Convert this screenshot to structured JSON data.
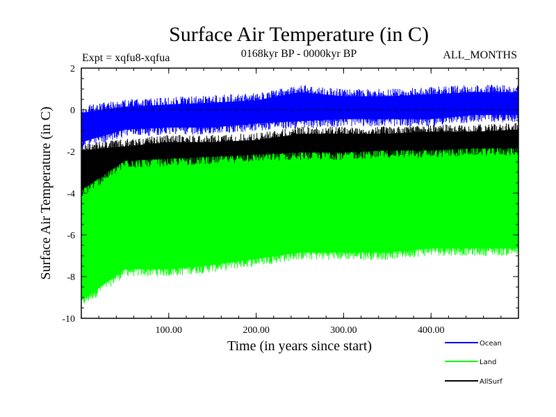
{
  "chart_data": {
    "type": "line",
    "title": "Surface Air Temperature (in C)",
    "subtitle": "0168kyr BP - 0000kyr BP",
    "expt_label": "Expt = xqfu8-xqfua",
    "months_label": "ALL_MONTHS",
    "xlabel": "Time (in years since start)",
    "ylabel": "Surface Air Temperature (in C)",
    "xlim": [
      0,
      500
    ],
    "ylim": [
      -10,
      2
    ],
    "x_ticks": [
      {
        "value": 100,
        "label": "100.00"
      },
      {
        "value": 200,
        "label": "200.00"
      },
      {
        "value": 300,
        "label": "300.00"
      },
      {
        "value": 400,
        "label": "400.00"
      }
    ],
    "y_ticks": [
      {
        "value": 2,
        "label": "2"
      },
      {
        "value": 0,
        "label": "0"
      },
      {
        "value": -2,
        "label": "-2"
      },
      {
        "value": -4,
        "label": "-4"
      },
      {
        "value": -6,
        "label": "-6"
      },
      {
        "value": -8,
        "label": "-8"
      },
      {
        "value": -10,
        "label": "-10"
      }
    ],
    "zero_line": true,
    "legend_position": "bottom-right",
    "series": [
      {
        "name": "Ocean",
        "color": "#0000ff",
        "x": [
          0,
          50,
          100,
          150,
          200,
          250,
          300,
          350,
          400,
          450,
          500
        ],
        "low": [
          -1.9,
          -1.3,
          -1.2,
          -1.2,
          -1.0,
          -0.9,
          -0.8,
          -0.8,
          -0.8,
          -0.6,
          -0.6
        ],
        "high": [
          0.2,
          0.5,
          0.6,
          0.7,
          0.8,
          1.2,
          1.0,
          1.0,
          1.1,
          1.2,
          1.2
        ]
      },
      {
        "name": "Land",
        "color": "#00ff00",
        "x": [
          0,
          50,
          100,
          150,
          200,
          250,
          300,
          350,
          400,
          450,
          500
        ],
        "low": [
          -9.5,
          -8.0,
          -8.0,
          -7.8,
          -7.5,
          -7.2,
          -7.2,
          -7.2,
          -7.0,
          -7.0,
          -7.0
        ],
        "high": [
          -2.8,
          -2.1,
          -1.9,
          -1.8,
          -1.6,
          -1.4,
          -1.3,
          -1.2,
          -1.2,
          -1.0,
          -1.0
        ]
      },
      {
        "name": "AllSurf",
        "color": "#000000",
        "x": [
          0,
          50,
          100,
          150,
          200,
          250,
          300,
          350,
          400,
          450,
          500
        ],
        "low": [
          -4.2,
          -2.8,
          -2.7,
          -2.6,
          -2.5,
          -2.4,
          -2.4,
          -2.3,
          -2.3,
          -2.2,
          -2.2
        ],
        "high": [
          -1.6,
          -1.4,
          -1.2,
          -1.2,
          -1.1,
          -0.8,
          -0.8,
          -0.8,
          -0.7,
          -0.7,
          -0.6
        ]
      }
    ]
  }
}
